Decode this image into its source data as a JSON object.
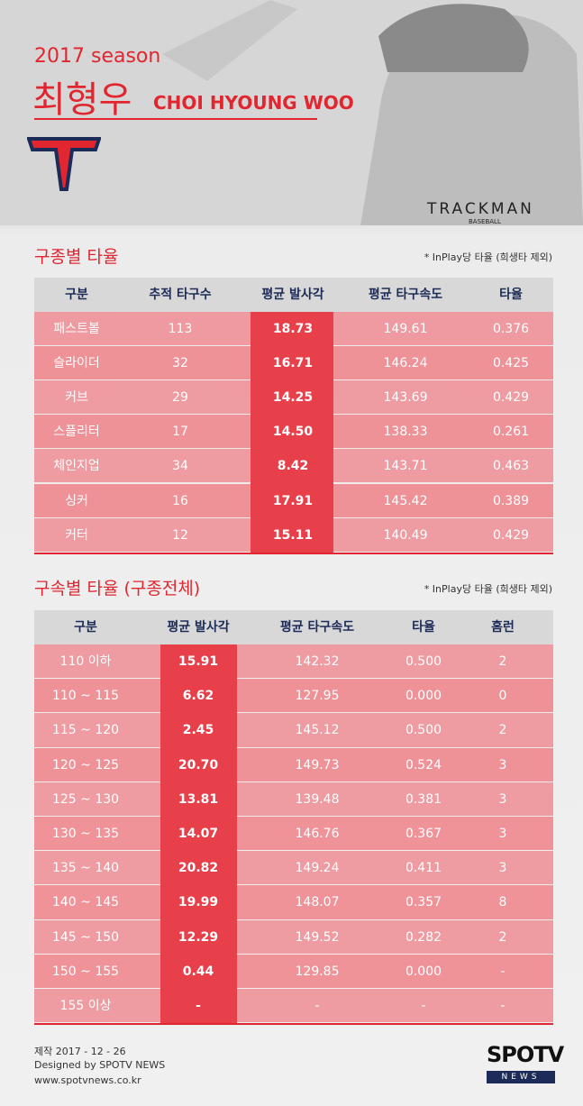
{
  "header": {
    "season": "2017 season",
    "name_ko": "최형우",
    "name_en": "CHOI HYOUNG WOO",
    "brand": "TRACKMAN",
    "brand_sub": "BASEBALL"
  },
  "tables": [
    {
      "title": "구종별 타율",
      "note": "* InPlay당 타율 (희생타 제외)",
      "columns": [
        "구분",
        "추적 타구수",
        "평균 발사각",
        "평균 타구속도",
        "타율"
      ],
      "rows": [
        [
          "패스트볼",
          "113",
          "18.73",
          "149.61",
          "0.376"
        ],
        [
          "슬라이더",
          "32",
          "16.71",
          "146.24",
          "0.425"
        ],
        [
          "커브",
          "29",
          "14.25",
          "143.69",
          "0.429"
        ],
        [
          "스플리터",
          "17",
          "14.50",
          "138.33",
          "0.261"
        ],
        [
          "체인지업",
          "34",
          "8.42",
          "143.71",
          "0.463"
        ],
        [
          "싱커",
          "16",
          "17.91",
          "145.42",
          "0.389"
        ],
        [
          "커터",
          "12",
          "15.11",
          "140.49",
          "0.429"
        ]
      ]
    },
    {
      "title": "구속별 타율 (구종전체)",
      "note": "* InPlay당 타율 (희생타 제외)",
      "columns": [
        "구분",
        "평균 발사각",
        "평균 타구속도",
        "타율",
        "홈런"
      ],
      "rows": [
        [
          "110 이하",
          "15.91",
          "142.32",
          "0.500",
          "2"
        ],
        [
          "110 ~ 115",
          "6.62",
          "127.95",
          "0.000",
          "0"
        ],
        [
          "115 ~ 120",
          "2.45",
          "145.12",
          "0.500",
          "2"
        ],
        [
          "120 ~ 125",
          "20.70",
          "149.73",
          "0.524",
          "3"
        ],
        [
          "125 ~ 130",
          "13.81",
          "139.48",
          "0.381",
          "3"
        ],
        [
          "130 ~ 135",
          "14.07",
          "146.76",
          "0.367",
          "3"
        ],
        [
          "135 ~ 140",
          "20.82",
          "149.24",
          "0.411",
          "3"
        ],
        [
          "140 ~ 145",
          "19.99",
          "148.07",
          "0.357",
          "8"
        ],
        [
          "145 ~ 150",
          "12.29",
          "149.52",
          "0.282",
          "2"
        ],
        [
          "150 ~ 155",
          "0.44",
          "129.85",
          "0.000",
          "-"
        ],
        [
          "155 이상",
          "-",
          "-",
          "-",
          "-"
        ]
      ]
    }
  ],
  "footer": {
    "made": "제작 2017 - 12 - 26",
    "designed": "Designed by SPOTV NEWS",
    "url": "www.spotvnews.co.kr",
    "logo": "SPOTV",
    "logo_sub": "NEWS"
  }
}
